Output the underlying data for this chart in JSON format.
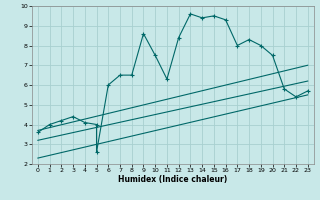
{
  "xlabel": "Humidex (Indice chaleur)",
  "ylabel": "",
  "bg_color": "#c8e8e8",
  "grid_color": "#a8d0d0",
  "line_color": "#006868",
  "xlim": [
    -0.5,
    23.5
  ],
  "ylim": [
    2,
    10
  ],
  "xticks": [
    0,
    1,
    2,
    3,
    4,
    5,
    6,
    7,
    8,
    9,
    10,
    11,
    12,
    13,
    14,
    15,
    16,
    17,
    18,
    19,
    20,
    21,
    22,
    23
  ],
  "yticks": [
    2,
    3,
    4,
    5,
    6,
    7,
    8,
    9,
    10
  ],
  "main_line_x": [
    0,
    1,
    2,
    3,
    4,
    5,
    5,
    6,
    7,
    8,
    9,
    10,
    11,
    12,
    13,
    14,
    15,
    16,
    17,
    18,
    19,
    20,
    21,
    22,
    23
  ],
  "main_line_y": [
    3.6,
    4.0,
    4.2,
    4.4,
    4.1,
    4.0,
    2.6,
    6.0,
    6.5,
    6.5,
    8.6,
    7.5,
    6.3,
    8.4,
    9.6,
    9.4,
    9.5,
    9.3,
    8.0,
    8.3,
    8.0,
    7.5,
    5.8,
    5.4,
    5.7
  ],
  "trend1_x": [
    0,
    23
  ],
  "trend1_y": [
    3.7,
    7.0
  ],
  "trend2_x": [
    0,
    23
  ],
  "trend2_y": [
    3.2,
    6.2
  ],
  "trend3_x": [
    0,
    23
  ],
  "trend3_y": [
    2.3,
    5.5
  ]
}
